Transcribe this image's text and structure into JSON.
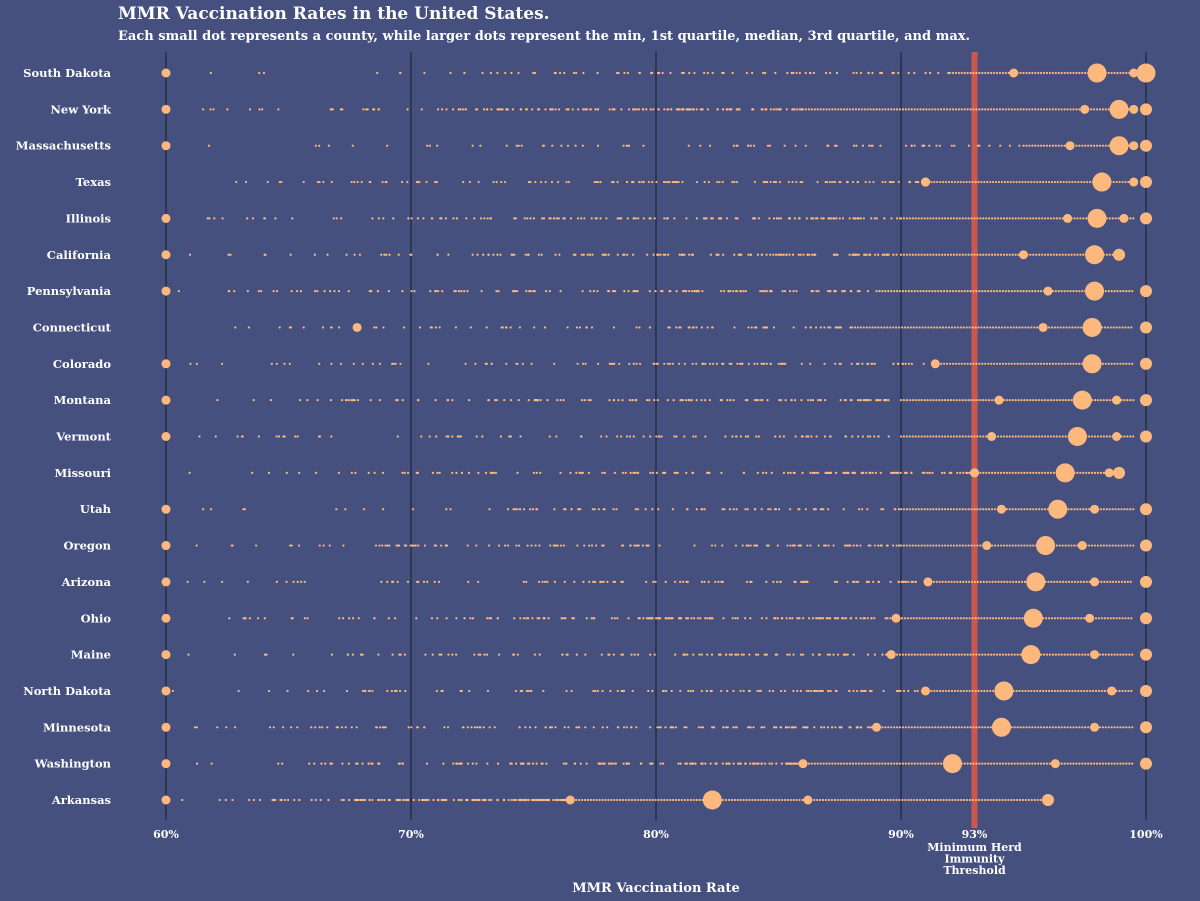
{
  "chart_data": {
    "type": "scatter",
    "title": "MMR Vaccination Rates in the United States.",
    "subtitle": "Each small dot represents a county, while larger dots represent the min, 1st quartile, median, 3rd quartile, and max.",
    "xlabel": "MMR Vaccination Rate",
    "xlim": [
      60,
      100
    ],
    "x_ticks": [
      {
        "value": 60,
        "label": "60%"
      },
      {
        "value": 70,
        "label": "70%"
      },
      {
        "value": 80,
        "label": "80%"
      },
      {
        "value": 90,
        "label": "90%"
      },
      {
        "value": 93,
        "label": "93%"
      },
      {
        "value": 100,
        "label": "100%"
      }
    ],
    "threshold": {
      "value": 93,
      "label": "Minimum Herd Immunity Threshold",
      "label_lines": [
        "Minimum Herd",
        "Immunity",
        "Threshold"
      ]
    },
    "colors": {
      "background": "#46507f",
      "dot": "#fdb97d",
      "threshold": "#d9584a",
      "gridline": "#1e2238",
      "text": "#ffffff"
    },
    "states": [
      {
        "name": "South Dakota",
        "min": 60,
        "q1": 94.6,
        "median": 98,
        "q3": 99.5,
        "max": 100,
        "range_start": 92.0,
        "county_density": 0.35
      },
      {
        "name": "New York",
        "min": 60,
        "q1": 97.5,
        "median": 98.9,
        "q3": 99.5,
        "max": 100,
        "range_start": 86.0,
        "county_density": 0.9
      },
      {
        "name": "Massachusetts",
        "min": 60,
        "q1": 96.9,
        "median": 98.9,
        "q3": 99.5,
        "max": 100,
        "range_start": 95.0,
        "county_density": 0.25
      },
      {
        "name": "Texas",
        "min": 91.0,
        "q1": 91.0,
        "median": 98.2,
        "q3": 99.5,
        "max": 100,
        "range_start": 91.0,
        "county_density": 0.7
      },
      {
        "name": "Illinois",
        "min": 60,
        "q1": 96.8,
        "median": 98.0,
        "q3": 99.1,
        "max": 100,
        "range_start": 90.0,
        "county_density": 0.8
      },
      {
        "name": "California",
        "min": 60,
        "q1": 95.0,
        "median": 97.9,
        "q3": 98.9,
        "max": 98.9,
        "range_start": 90.0,
        "county_density": 0.75
      },
      {
        "name": "Pennsylvania",
        "min": 60,
        "q1": 96.0,
        "median": 97.9,
        "q3": 100,
        "max": 100,
        "range_start": 89.0,
        "county_density": 0.7
      },
      {
        "name": "Connecticut",
        "min": 67.8,
        "q1": 95.8,
        "median": 97.8,
        "q3": 100,
        "max": 100,
        "range_start": 88.0,
        "county_density": 0.3
      },
      {
        "name": "Colorado",
        "min": 60,
        "q1": 91.4,
        "median": 97.8,
        "q3": 100,
        "max": 100,
        "range_start": 91.4,
        "county_density": 0.6
      },
      {
        "name": "Montana",
        "min": 60,
        "q1": 94.0,
        "median": 97.4,
        "q3": 98.8,
        "max": 100,
        "range_start": 90.0,
        "county_density": 0.7
      },
      {
        "name": "Vermont",
        "min": 60,
        "q1": 93.7,
        "median": 97.2,
        "q3": 98.8,
        "max": 100,
        "range_start": 90.0,
        "county_density": 0.4
      },
      {
        "name": "Missouri",
        "min": 93.0,
        "q1": 93.0,
        "median": 96.7,
        "q3": 98.5,
        "max": 98.9,
        "range_start": 93.0,
        "county_density": 0.8
      },
      {
        "name": "Utah",
        "min": 60,
        "q1": 94.1,
        "median": 96.4,
        "q3": 97.9,
        "max": 100,
        "range_start": 90.0,
        "county_density": 0.35
      },
      {
        "name": "Oregon",
        "min": 60,
        "q1": 93.5,
        "median": 95.9,
        "q3": 97.4,
        "max": 100,
        "range_start": 90.0,
        "county_density": 0.7
      },
      {
        "name": "Arizona",
        "min": 60,
        "q1": 91.1,
        "median": 95.5,
        "q3": 97.9,
        "max": 100,
        "range_start": 91.1,
        "county_density": 0.5
      },
      {
        "name": "Ohio",
        "min": 60,
        "q1": 89.8,
        "median": 95.4,
        "q3": 97.7,
        "max": 100,
        "range_start": 89.8,
        "county_density": 0.85
      },
      {
        "name": "Maine",
        "min": 60,
        "q1": 89.6,
        "median": 95.3,
        "q3": 97.9,
        "max": 100,
        "range_start": 89.6,
        "county_density": 0.5
      },
      {
        "name": "North Dakota",
        "min": 60,
        "q1": 91.0,
        "median": 94.2,
        "q3": 98.6,
        "max": 100,
        "range_start": 91.0,
        "county_density": 0.6
      },
      {
        "name": "Minnesota",
        "min": 60,
        "q1": 89.0,
        "median": 94.1,
        "q3": 97.9,
        "max": 100,
        "range_start": 89.0,
        "county_density": 0.85
      },
      {
        "name": "Washington",
        "min": 60,
        "q1": 86.0,
        "median": 92.1,
        "q3": 96.3,
        "max": 100,
        "range_start": 86.0,
        "county_density": 0.8
      },
      {
        "name": "Arkansas",
        "min": 60,
        "q1": 76.5,
        "median": 82.3,
        "q3": 86.2,
        "max": 96.0,
        "range_start": 76.5,
        "county_density": 0.85
      }
    ]
  }
}
